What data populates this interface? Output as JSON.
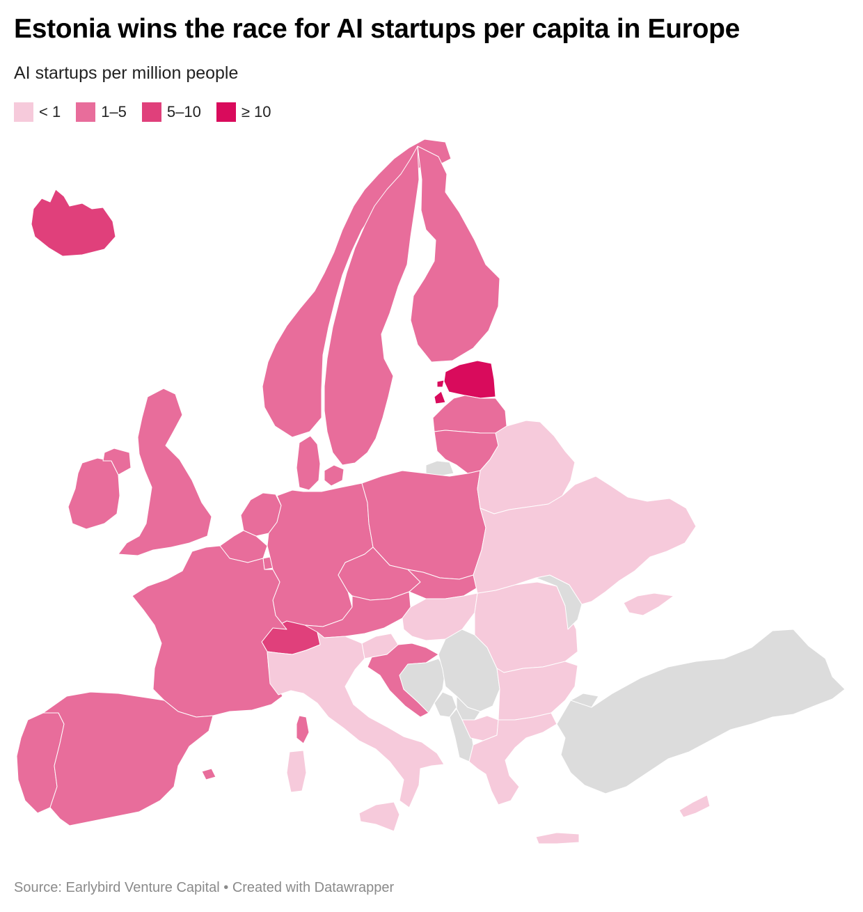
{
  "title": "Estonia wins the race for AI startups per capita in Europe",
  "subtitle": "AI startups per million people",
  "legend": [
    {
      "label": "< 1",
      "color": "#f6cadb"
    },
    {
      "label": "1–5",
      "color": "#e86d9b"
    },
    {
      "label": "5–10",
      "color": "#e0407b"
    },
    {
      "label": "≥ 10",
      "color": "#d90b5c"
    }
  ],
  "no_data_color": "#dcdcdc",
  "source": "Source: Earlybird Venture Capital • Created with Datawrapper",
  "regions": [
    {
      "name": "Iceland",
      "class": "5–10"
    },
    {
      "name": "Norway",
      "class": "1–5"
    },
    {
      "name": "Sweden",
      "class": "1–5"
    },
    {
      "name": "Finland",
      "class": "1–5"
    },
    {
      "name": "Estonia",
      "class": "≥ 10"
    },
    {
      "name": "Latvia",
      "class": "1–5"
    },
    {
      "name": "Lithuania",
      "class": "1–5"
    },
    {
      "name": "Ireland",
      "class": "1–5"
    },
    {
      "name": "United Kingdom",
      "class": "1–5"
    },
    {
      "name": "Denmark",
      "class": "1–5"
    },
    {
      "name": "Netherlands",
      "class": "1–5"
    },
    {
      "name": "Belgium",
      "class": "1–5"
    },
    {
      "name": "Luxembourg",
      "class": "1–5"
    },
    {
      "name": "Germany",
      "class": "1–5"
    },
    {
      "name": "Poland",
      "class": "1–5"
    },
    {
      "name": "Czechia",
      "class": "1–5"
    },
    {
      "name": "Slovakia",
      "class": "1–5"
    },
    {
      "name": "Austria",
      "class": "1–5"
    },
    {
      "name": "Switzerland",
      "class": "5–10"
    },
    {
      "name": "France",
      "class": "1–5"
    },
    {
      "name": "Spain",
      "class": "1–5"
    },
    {
      "name": "Portugal",
      "class": "1–5"
    },
    {
      "name": "Croatia",
      "class": "1–5"
    },
    {
      "name": "Slovenia",
      "class": "< 1"
    },
    {
      "name": "Hungary",
      "class": "< 1"
    },
    {
      "name": "Italy",
      "class": "< 1"
    },
    {
      "name": "Belarus",
      "class": "< 1"
    },
    {
      "name": "Ukraine",
      "class": "< 1"
    },
    {
      "name": "Romania",
      "class": "< 1"
    },
    {
      "name": "Bulgaria",
      "class": "< 1"
    },
    {
      "name": "Greece",
      "class": "< 1"
    },
    {
      "name": "North Macedonia",
      "class": "< 1"
    },
    {
      "name": "Cyprus",
      "class": "< 1"
    },
    {
      "name": "Moldova",
      "class": "no data"
    },
    {
      "name": "Serbia",
      "class": "no data"
    },
    {
      "name": "Bosnia and Herzegovina",
      "class": "no data"
    },
    {
      "name": "Montenegro",
      "class": "no data"
    },
    {
      "name": "Kosovo",
      "class": "no data"
    },
    {
      "name": "Albania",
      "class": "no data"
    },
    {
      "name": "Turkey",
      "class": "no data"
    },
    {
      "name": "Kaliningrad",
      "class": "no data"
    }
  ]
}
